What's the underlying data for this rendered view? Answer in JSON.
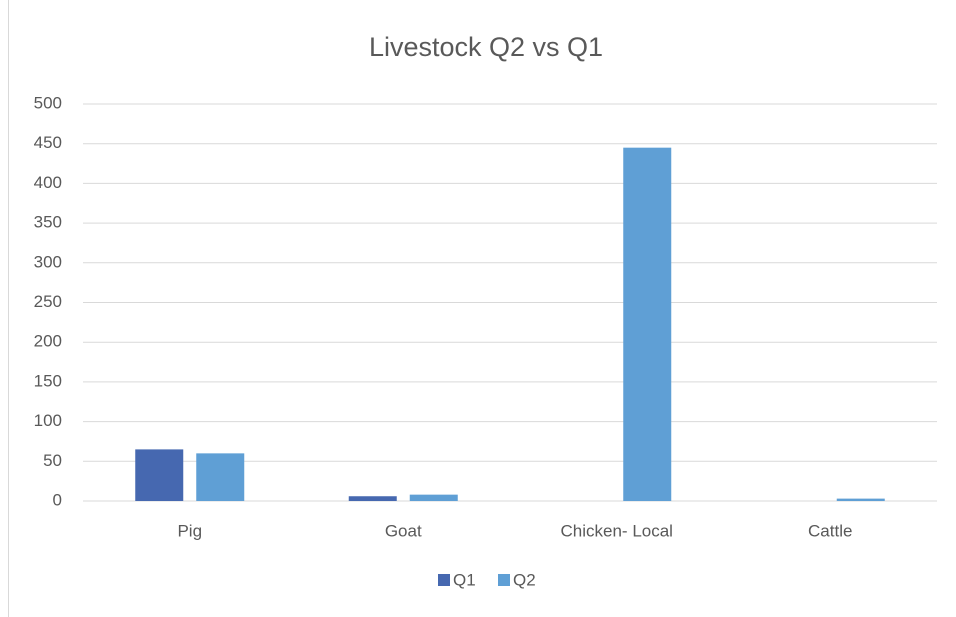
{
  "chart_data": {
    "type": "bar",
    "title": "Livestock Q2 vs Q1",
    "categories": [
      "Pig",
      "Goat",
      "Chicken- Local",
      "Cattle"
    ],
    "series": [
      {
        "name": "Q1",
        "color": "#4668b0",
        "values": [
          65,
          6,
          0,
          0
        ]
      },
      {
        "name": "Q2",
        "color": "#5f9fd5",
        "values": [
          60,
          8,
          445,
          3
        ]
      }
    ],
    "ylim": [
      0,
      500
    ],
    "yticks": [
      0,
      50,
      100,
      150,
      200,
      250,
      300,
      350,
      400,
      450,
      500
    ],
    "grid": true,
    "legend": "bottom"
  }
}
